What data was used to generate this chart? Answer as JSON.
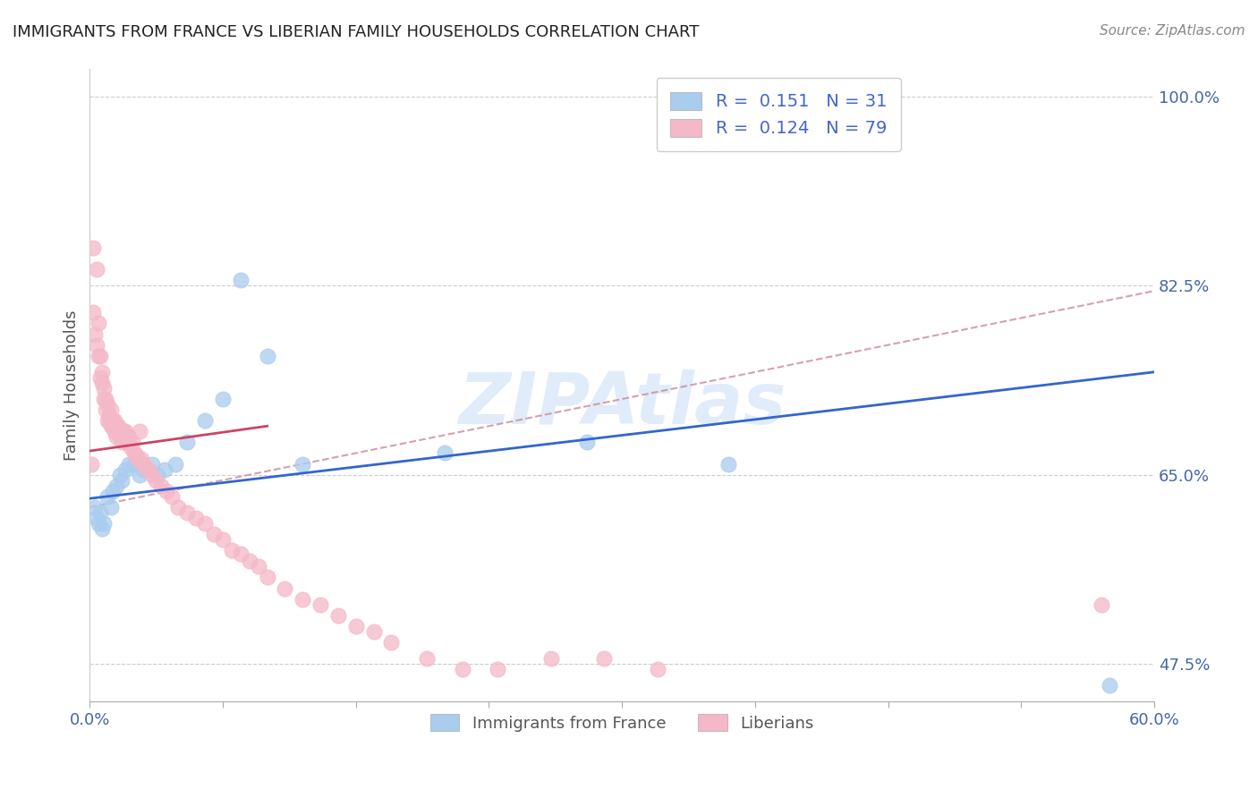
{
  "title": "IMMIGRANTS FROM FRANCE VS LIBERIAN FAMILY HOUSEHOLDS CORRELATION CHART",
  "source_text": "Source: ZipAtlas.com",
  "ylabel": "Family Households",
  "x_min": 0.0,
  "x_max": 0.6,
  "y_min": 0.44,
  "y_max": 1.025,
  "y_ticks_labeled": [
    0.475,
    0.65,
    0.825,
    1.0
  ],
  "y_ticks_minor": [
    0.475,
    0.5,
    0.525,
    0.55,
    0.575,
    0.6,
    0.625,
    0.65,
    0.675,
    0.7,
    0.725,
    0.75,
    0.775,
    0.8,
    0.825,
    0.85,
    0.875,
    0.9,
    0.925,
    0.95,
    0.975,
    1.0
  ],
  "x_ticks": [
    0.0,
    0.075,
    0.15,
    0.225,
    0.3,
    0.375,
    0.45,
    0.525,
    0.6
  ],
  "blue_color": "#aaccee",
  "pink_color": "#f4b8c8",
  "blue_line_color": "#3366cc",
  "pink_line_color": "#cc4466",
  "dashed_line_color": "#cc8899",
  "legend_r_blue": "0.151",
  "legend_n_blue": "31",
  "legend_r_pink": "0.124",
  "legend_n_pink": "79",
  "watermark": "ZIPAtlas",
  "legend_label_blue": "Immigrants from France",
  "legend_label_pink": "Liberians",
  "blue_x": [
    0.003,
    0.004,
    0.005,
    0.006,
    0.007,
    0.008,
    0.01,
    0.012,
    0.013,
    0.015,
    0.017,
    0.018,
    0.02,
    0.022,
    0.025,
    0.028,
    0.03,
    0.035,
    0.038,
    0.042,
    0.048,
    0.055,
    0.065,
    0.075,
    0.085,
    0.1,
    0.12,
    0.2,
    0.28,
    0.36,
    0.575
  ],
  "blue_y": [
    0.62,
    0.61,
    0.605,
    0.615,
    0.6,
    0.605,
    0.63,
    0.62,
    0.635,
    0.64,
    0.65,
    0.645,
    0.655,
    0.66,
    0.66,
    0.65,
    0.655,
    0.66,
    0.65,
    0.655,
    0.66,
    0.68,
    0.7,
    0.72,
    0.83,
    0.76,
    0.66,
    0.67,
    0.68,
    0.66,
    0.455
  ],
  "pink_x": [
    0.001,
    0.002,
    0.002,
    0.003,
    0.004,
    0.004,
    0.005,
    0.005,
    0.006,
    0.006,
    0.007,
    0.007,
    0.008,
    0.008,
    0.009,
    0.009,
    0.01,
    0.01,
    0.011,
    0.011,
    0.012,
    0.012,
    0.013,
    0.013,
    0.014,
    0.014,
    0.015,
    0.015,
    0.016,
    0.016,
    0.017,
    0.017,
    0.018,
    0.018,
    0.019,
    0.02,
    0.02,
    0.021,
    0.022,
    0.023,
    0.024,
    0.025,
    0.026,
    0.027,
    0.028,
    0.029,
    0.03,
    0.031,
    0.033,
    0.035,
    0.037,
    0.04,
    0.043,
    0.046,
    0.05,
    0.055,
    0.06,
    0.065,
    0.07,
    0.075,
    0.08,
    0.085,
    0.09,
    0.095,
    0.1,
    0.11,
    0.12,
    0.13,
    0.14,
    0.15,
    0.16,
    0.17,
    0.19,
    0.21,
    0.23,
    0.26,
    0.29,
    0.32,
    0.57
  ],
  "pink_y": [
    0.66,
    0.8,
    0.86,
    0.78,
    0.84,
    0.77,
    0.79,
    0.76,
    0.76,
    0.74,
    0.745,
    0.735,
    0.73,
    0.72,
    0.72,
    0.71,
    0.715,
    0.7,
    0.705,
    0.7,
    0.71,
    0.695,
    0.7,
    0.695,
    0.7,
    0.69,
    0.695,
    0.685,
    0.695,
    0.69,
    0.69,
    0.685,
    0.69,
    0.68,
    0.69,
    0.69,
    0.685,
    0.68,
    0.685,
    0.675,
    0.68,
    0.67,
    0.668,
    0.665,
    0.69,
    0.665,
    0.66,
    0.658,
    0.655,
    0.65,
    0.645,
    0.64,
    0.635,
    0.63,
    0.62,
    0.615,
    0.61,
    0.605,
    0.595,
    0.59,
    0.58,
    0.577,
    0.57,
    0.565,
    0.555,
    0.545,
    0.535,
    0.53,
    0.52,
    0.51,
    0.505,
    0.495,
    0.48,
    0.47,
    0.47,
    0.48,
    0.48,
    0.47,
    0.53
  ]
}
